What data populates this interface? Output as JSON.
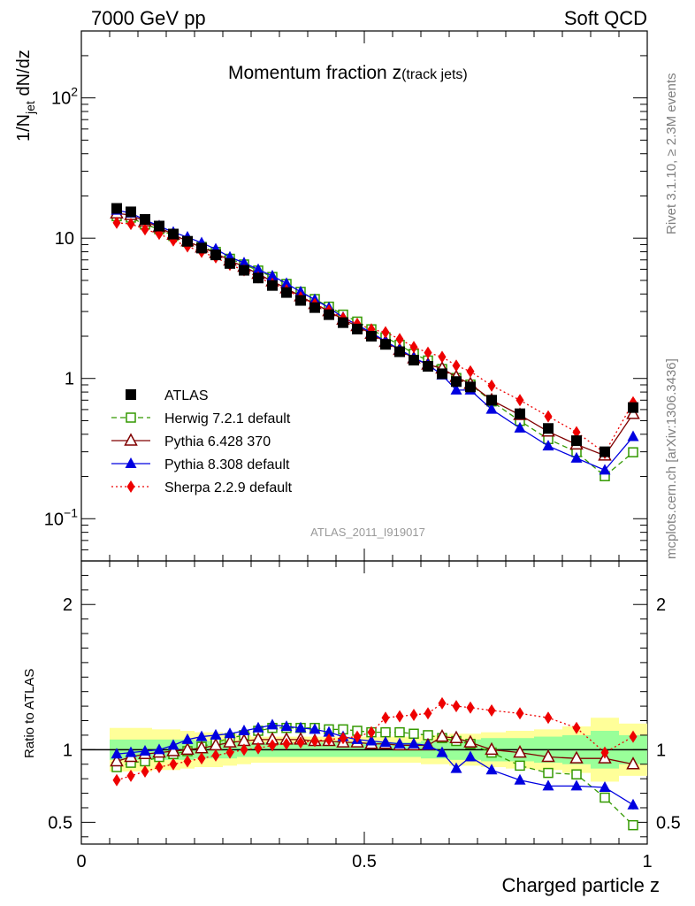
{
  "header": {
    "left": "7000 GeV pp",
    "right": "Soft QCD"
  },
  "side_text": {
    "rivet": "Rivet 3.1.10, ≥ 2.3M events",
    "site": "mcplots.cern.ch [arXiv:1306.3436]"
  },
  "chart_data": {
    "type": "scatter",
    "title": "Momentum fraction z",
    "title_suffix": "(track jets)",
    "analysis": "ATLAS_2011_I919017",
    "xlabel": "Charged particle z",
    "ylabel_main": "1/N",
    "ylabel_sub": "jet",
    "ylabel_tail": " dN/dz",
    "ylabel_ratio": "Ratio to ATLAS",
    "xlim": [
      0,
      1
    ],
    "ylim_main": [
      0.05,
      300
    ],
    "ylog": true,
    "ylim_ratio": [
      0.35,
      2.3
    ],
    "x_ticks": [
      {
        "v": 0,
        "t": "0"
      },
      {
        "v": 0.5,
        "t": "0.5"
      },
      {
        "v": 1,
        "t": "1"
      }
    ],
    "y_main_ticks": [
      {
        "v": 0.1,
        "base": "10",
        "exp": "−1"
      },
      {
        "v": 1,
        "base": "1",
        "exp": ""
      },
      {
        "v": 10,
        "base": "10",
        "exp": ""
      },
      {
        "v": 100,
        "base": "10",
        "exp": "2"
      }
    ],
    "y_ratio_ticks": [
      {
        "v": 0.5,
        "t": "0.5"
      },
      {
        "v": 1,
        "t": "1"
      },
      {
        "v": 2,
        "t": "2"
      }
    ],
    "x": [
      0.0625,
      0.0875,
      0.1125,
      0.1375,
      0.1625,
      0.1875,
      0.2125,
      0.2375,
      0.2625,
      0.2875,
      0.3125,
      0.3375,
      0.3625,
      0.3875,
      0.4125,
      0.4375,
      0.4625,
      0.4875,
      0.5125,
      0.5375,
      0.5625,
      0.5875,
      0.6125,
      0.6375,
      0.6625,
      0.6875,
      0.725,
      0.775,
      0.825,
      0.875,
      0.925,
      0.975
    ],
    "band_inner": [
      0.07,
      0.07,
      0.07,
      0.07,
      0.07,
      0.07,
      0.06,
      0.06,
      0.06,
      0.05,
      0.05,
      0.05,
      0.05,
      0.05,
      0.05,
      0.05,
      0.05,
      0.05,
      0.05,
      0.05,
      0.05,
      0.05,
      0.06,
      0.06,
      0.07,
      0.07,
      0.08,
      0.08,
      0.09,
      0.1,
      0.13,
      0.1
    ],
    "band_outer": [
      0.15,
      0.15,
      0.15,
      0.14,
      0.14,
      0.13,
      0.12,
      0.12,
      0.11,
      0.1,
      0.09,
      0.09,
      0.09,
      0.09,
      0.09,
      0.09,
      0.09,
      0.09,
      0.09,
      0.09,
      0.09,
      0.09,
      0.1,
      0.1,
      0.11,
      0.11,
      0.12,
      0.13,
      0.14,
      0.16,
      0.22,
      0.18
    ],
    "series": [
      {
        "name": "ATLAS",
        "color": "#000000",
        "marker": "square-filled",
        "line": "none",
        "values": [
          16.3,
          15.4,
          13.6,
          12.2,
          10.7,
          9.5,
          8.5,
          7.6,
          6.6,
          5.9,
          5.2,
          4.6,
          4.1,
          3.6,
          3.2,
          2.85,
          2.5,
          2.25,
          2.0,
          1.75,
          1.55,
          1.35,
          1.22,
          1.08,
          0.95,
          0.87,
          0.7,
          0.56,
          0.44,
          0.36,
          0.3,
          0.62
        ]
      },
      {
        "name": "Herwig 7.2.1 default",
        "color": "#339900",
        "marker": "square-open",
        "line": "dashed",
        "ratio": [
          0.88,
          0.91,
          0.92,
          0.95,
          0.97,
          0.99,
          1.02,
          1.05,
          1.08,
          1.1,
          1.13,
          1.15,
          1.15,
          1.15,
          1.15,
          1.14,
          1.14,
          1.13,
          1.12,
          1.12,
          1.12,
          1.11,
          1.1,
          1.08,
          1.06,
          1.04,
          0.98,
          0.89,
          0.84,
          0.83,
          0.67,
          0.48
        ]
      },
      {
        "name": "Pythia 6.428 370",
        "color": "#800000",
        "marker": "triangle-open",
        "line": "solid",
        "ratio": [
          0.92,
          0.95,
          0.97,
          0.98,
          0.99,
          1.0,
          1.01,
          1.03,
          1.05,
          1.06,
          1.07,
          1.07,
          1.07,
          1.07,
          1.06,
          1.06,
          1.05,
          1.05,
          1.04,
          1.04,
          1.03,
          1.03,
          1.03,
          1.09,
          1.08,
          1.05,
          1.0,
          0.98,
          0.95,
          0.94,
          0.94,
          0.9
        ]
      },
      {
        "name": "Pythia 8.308 default",
        "color": "#0000e0",
        "marker": "triangle-filled",
        "line": "solid",
        "ratio": [
          0.97,
          0.98,
          0.99,
          1.0,
          1.03,
          1.07,
          1.09,
          1.1,
          1.11,
          1.13,
          1.15,
          1.17,
          1.16,
          1.15,
          1.14,
          1.12,
          1.09,
          1.07,
          1.06,
          1.05,
          1.04,
          1.04,
          1.03,
          0.98,
          0.87,
          0.95,
          0.86,
          0.79,
          0.75,
          0.75,
          0.74,
          0.62
        ]
      },
      {
        "name": "Sherpa 2.2.9 default",
        "color": "#ee0000",
        "marker": "diamond-filled",
        "line": "dotted",
        "ratio": [
          0.79,
          0.82,
          0.85,
          0.88,
          0.9,
          0.92,
          0.94,
          0.96,
          0.98,
          1.0,
          1.01,
          1.03,
          1.04,
          1.05,
          1.06,
          1.07,
          1.08,
          1.09,
          1.12,
          1.22,
          1.23,
          1.24,
          1.25,
          1.32,
          1.3,
          1.29,
          1.27,
          1.25,
          1.22,
          1.15,
          0.98,
          1.09
        ]
      }
    ]
  }
}
